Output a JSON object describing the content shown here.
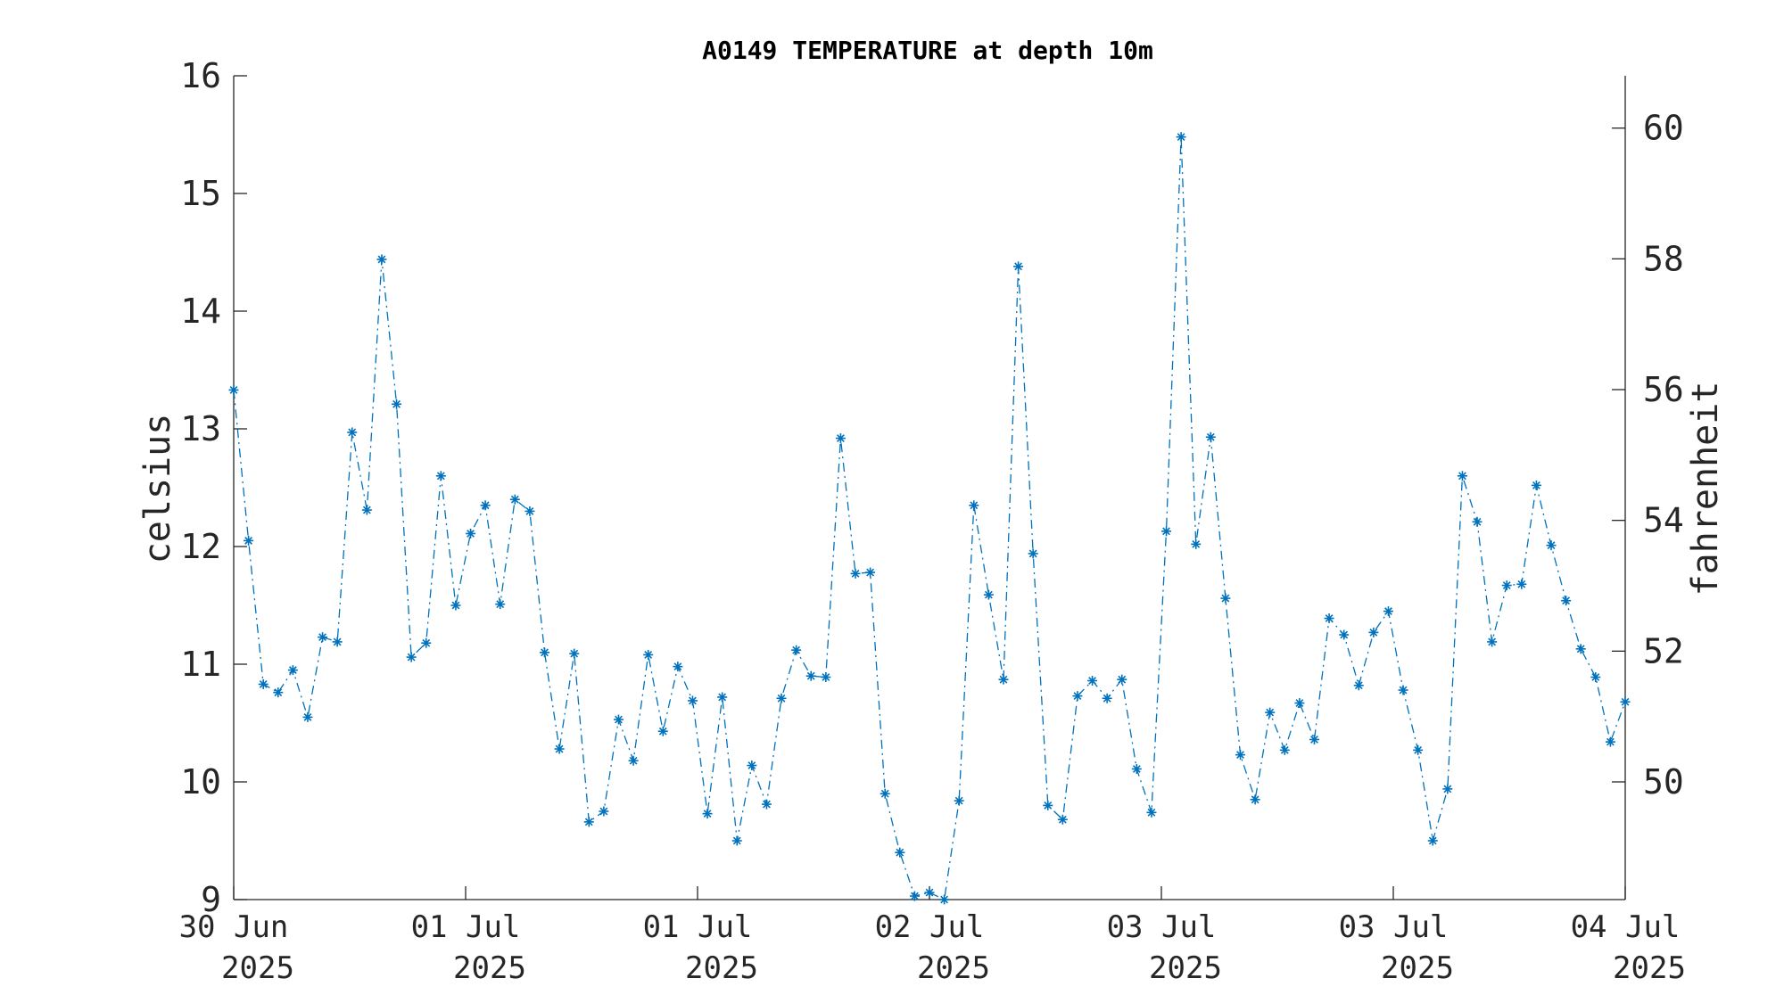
{
  "chart_data": {
    "type": "line",
    "title": "A0149 TEMPERATURE at depth 10m",
    "ylabel": "celsius",
    "y2label": "fahrenheit",
    "ylim": [
      9,
      16
    ],
    "y_ticks": [
      "9",
      "10",
      "11",
      "12",
      "13",
      "14",
      "15",
      "16"
    ],
    "y2lim": [
      48.2,
      60.8
    ],
    "y2_ticks": [
      "50",
      "52",
      "54",
      "56",
      "58",
      "60"
    ],
    "x_tick_labels": [
      [
        "30 Jun",
        "2025"
      ],
      [
        "01 Jul",
        "2025"
      ],
      [
        "01 Jul",
        "2025"
      ],
      [
        "02 Jul",
        "2025"
      ],
      [
        "03 Jul",
        "2025"
      ],
      [
        "03 Jul",
        "2025"
      ],
      [
        "04 Jul",
        "2025"
      ]
    ],
    "grid": false,
    "marker": "asterisk",
    "line_style": "dash-dot",
    "color": "#0072BD",
    "series": [
      {
        "values": [
          13.33,
          12.05,
          10.83,
          10.76,
          10.95,
          10.55,
          11.23,
          11.19,
          12.97,
          12.31,
          14.44,
          13.21,
          11.06,
          11.18,
          12.6,
          11.5,
          12.11,
          12.35,
          11.51,
          12.4,
          12.3,
          11.1,
          10.28,
          11.09,
          9.66,
          9.75,
          10.53,
          10.18,
          11.08,
          10.43,
          10.98,
          10.69,
          9.73,
          10.72,
          9.5,
          10.14,
          9.81,
          10.71,
          11.12,
          10.9,
          10.89,
          12.92,
          11.77,
          11.78,
          9.9,
          9.4,
          9.03,
          9.06,
          9.0,
          9.84,
          12.35,
          11.59,
          10.87,
          14.38,
          11.94,
          9.8,
          9.68,
          10.73,
          10.86,
          10.71,
          10.87,
          10.11,
          9.74,
          12.13,
          15.48,
          12.02,
          12.93,
          11.56,
          10.23,
          9.85,
          10.59,
          10.27,
          10.67,
          10.36,
          11.39,
          11.25,
          10.82,
          11.27,
          11.45,
          10.78,
          10.27,
          9.5,
          9.94,
          12.6,
          12.21,
          11.19,
          11.67,
          11.68,
          12.52,
          12.01,
          11.54,
          11.13,
          10.89,
          10.34,
          10.68
        ]
      }
    ]
  }
}
